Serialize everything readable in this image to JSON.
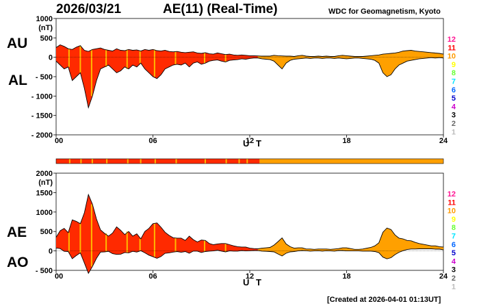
{
  "header": {
    "date": "2026/03/21",
    "title": "AE(11) (Real-Time)",
    "source": "WDC for Geomagnetism, Kyoto"
  },
  "footer": {
    "created": "[Created at 2026-04-01 01:13UT]"
  },
  "labels": {
    "au": "AU",
    "al": "AL",
    "ae": "AE",
    "ao": "AO"
  },
  "legend": {
    "stations": [
      "12",
      "11",
      "10",
      "9",
      "8",
      "7",
      "6",
      "5",
      "4",
      "3",
      "2",
      "1"
    ],
    "colors": [
      "#ff1493",
      "#ff0000",
      "#ff9900",
      "#ffff00",
      "#66ff33",
      "#00e5ff",
      "#0066ff",
      "#0000cc",
      "#cc00cc",
      "#000000",
      "#666666",
      "#bbbbbb"
    ]
  },
  "colors": {
    "orange_fill": "#ffa000",
    "red_fill": "#ff2a00",
    "yellow_stripe": "#ffbb00"
  },
  "chart_data": [
    {
      "type": "area",
      "panel": "AU/AL",
      "xlabel": "U T",
      "ylabel": "(nT)",
      "xlim": [
        0,
        24
      ],
      "ylim": [
        -2000,
        1000
      ],
      "x_ticks": [
        "00",
        "06",
        "12",
        "18",
        "24"
      ],
      "y_ticks": [
        "1000",
        "500",
        "0",
        "- 500",
        "- 1000",
        "- 1500",
        "- 2000"
      ],
      "x": [
        0,
        0.25,
        0.5,
        0.75,
        1,
        1.25,
        1.5,
        1.75,
        2,
        2.25,
        2.5,
        2.75,
        3,
        3.25,
        3.5,
        3.75,
        4,
        4.25,
        4.5,
        4.75,
        5,
        5.25,
        5.5,
        5.75,
        6,
        6.25,
        6.5,
        6.75,
        7,
        7.25,
        7.5,
        7.75,
        8,
        8.25,
        8.5,
        8.75,
        9,
        9.25,
        9.5,
        9.75,
        10,
        10.25,
        10.5,
        10.75,
        11,
        11.25,
        11.5,
        11.75,
        12,
        12.25,
        12.5,
        12.75,
        13,
        13.25,
        13.5,
        13.75,
        14,
        14.25,
        14.5,
        14.75,
        15,
        15.25,
        15.5,
        15.75,
        16,
        16.25,
        16.5,
        16.75,
        17,
        17.25,
        17.5,
        17.75,
        18,
        18.25,
        18.5,
        18.75,
        19,
        19.25,
        19.5,
        19.75,
        20,
        20.25,
        20.5,
        20.75,
        21,
        21.25,
        21.5,
        21.75,
        22,
        22.25,
        22.5,
        22.75,
        23,
        23.25,
        23.5,
        23.75,
        24
      ],
      "series": [
        {
          "name": "AU",
          "values": [
            250,
            320,
            280,
            220,
            200,
            260,
            300,
            180,
            150,
            200,
            220,
            240,
            200,
            180,
            160,
            220,
            180,
            170,
            200,
            180,
            190,
            160,
            200,
            180,
            200,
            170,
            160,
            180,
            150,
            140,
            150,
            130,
            120,
            130,
            140,
            110,
            100,
            120,
            90,
            80,
            110,
            90,
            70,
            80,
            60,
            50,
            60,
            50,
            40,
            40,
            35,
            30,
            30,
            30,
            50,
            40,
            35,
            30,
            30,
            20,
            40,
            50,
            30,
            20,
            20,
            30,
            20,
            30,
            20,
            20,
            40,
            50,
            40,
            30,
            20,
            20,
            20,
            30,
            40,
            50,
            60,
            80,
            90,
            100,
            110,
            130,
            160,
            170,
            180,
            160,
            150,
            140,
            130,
            120,
            110,
            100,
            80
          ]
        },
        {
          "name": "AL",
          "values": [
            -100,
            -200,
            -300,
            -250,
            -600,
            -500,
            -400,
            -800,
            -1300,
            -1000,
            -600,
            -300,
            -250,
            -200,
            -300,
            -400,
            -350,
            -250,
            -300,
            -200,
            -250,
            -150,
            -300,
            -400,
            -500,
            -550,
            -450,
            -300,
            -250,
            -200,
            -180,
            -200,
            -150,
            -250,
            -150,
            -120,
            -180,
            -150,
            -100,
            -80,
            -70,
            -100,
            -120,
            -80,
            -70,
            -60,
            -40,
            -50,
            -30,
            -20,
            -20,
            -40,
            -50,
            -60,
            -100,
            -200,
            -300,
            -150,
            -80,
            -50,
            -40,
            -30,
            -20,
            -30,
            -20,
            -20,
            -30,
            -20,
            -20,
            -30,
            -20,
            -30,
            -40,
            -30,
            -20,
            -20,
            -30,
            -40,
            -50,
            -80,
            -150,
            -400,
            -500,
            -450,
            -300,
            -200,
            -150,
            -100,
            -80,
            -60,
            -40,
            -30,
            -20,
            -10,
            -20,
            -10,
            -20
          ]
        }
      ]
    },
    {
      "type": "area",
      "panel": "AE/AO",
      "xlabel": "U T",
      "ylabel": "(nT)",
      "xlim": [
        0,
        24
      ],
      "ylim": [
        -500,
        2000
      ],
      "x_ticks": [
        "00",
        "06",
        "12",
        "18",
        "24"
      ],
      "y_ticks": [
        "2000",
        "1500",
        "1000",
        "500",
        "0",
        "- 500"
      ],
      "x": [
        0,
        0.25,
        0.5,
        0.75,
        1,
        1.25,
        1.5,
        1.75,
        2,
        2.25,
        2.5,
        2.75,
        3,
        3.25,
        3.5,
        3.75,
        4,
        4.25,
        4.5,
        4.75,
        5,
        5.25,
        5.5,
        5.75,
        6,
        6.25,
        6.5,
        6.75,
        7,
        7.25,
        7.5,
        7.75,
        8,
        8.25,
        8.5,
        8.75,
        9,
        9.25,
        9.5,
        9.75,
        10,
        10.25,
        10.5,
        10.75,
        11,
        11.25,
        11.5,
        11.75,
        12,
        12.25,
        12.5,
        12.75,
        13,
        13.25,
        13.5,
        13.75,
        14,
        14.25,
        14.5,
        14.75,
        15,
        15.25,
        15.5,
        15.75,
        16,
        16.25,
        16.5,
        16.75,
        17,
        17.25,
        17.5,
        17.75,
        18,
        18.25,
        18.5,
        18.75,
        19,
        19.25,
        19.5,
        19.75,
        20,
        20.25,
        20.5,
        20.75,
        21,
        21.25,
        21.5,
        21.75,
        22,
        22.25,
        22.5,
        22.75,
        23,
        23.25,
        23.5,
        23.75,
        24
      ],
      "series": [
        {
          "name": "AE",
          "values": [
            350,
            520,
            580,
            470,
            800,
            760,
            700,
            980,
            1450,
            1200,
            820,
            540,
            450,
            380,
            460,
            620,
            530,
            420,
            500,
            380,
            440,
            310,
            500,
            580,
            700,
            720,
            610,
            480,
            400,
            340,
            330,
            330,
            270,
            380,
            290,
            230,
            280,
            270,
            190,
            160,
            180,
            190,
            190,
            160,
            130,
            110,
            100,
            100,
            70,
            60,
            55,
            70,
            80,
            90,
            150,
            240,
            335,
            180,
            110,
            70,
            80,
            80,
            50,
            50,
            40,
            50,
            50,
            50,
            40,
            50,
            60,
            80,
            80,
            60,
            40,
            40,
            50,
            70,
            90,
            130,
            210,
            480,
            590,
            550,
            410,
            330,
            310,
            270,
            260,
            220,
            190,
            170,
            150,
            130,
            130,
            110,
            100
          ]
        },
        {
          "name": "AO",
          "values": [
            75,
            60,
            -10,
            -15,
            -200,
            -120,
            -50,
            -310,
            -575,
            -400,
            -190,
            -30,
            -25,
            -10,
            -70,
            -90,
            -85,
            -40,
            -50,
            -10,
            -30,
            5,
            -50,
            -110,
            -150,
            -190,
            -145,
            -60,
            -50,
            -30,
            -15,
            -35,
            -15,
            -60,
            -5,
            -5,
            -40,
            -15,
            -5,
            0,
            20,
            -5,
            -25,
            0,
            -5,
            -5,
            10,
            0,
            5,
            10,
            8,
            -5,
            -10,
            -15,
            -25,
            -80,
            -130,
            -60,
            -25,
            -15,
            0,
            10,
            5,
            -5,
            0,
            5,
            -5,
            5,
            0,
            -5,
            10,
            10,
            0,
            0,
            0,
            0,
            -5,
            -5,
            -5,
            -15,
            -45,
            -160,
            -205,
            -175,
            -95,
            -35,
            5,
            35,
            50,
            50,
            55,
            55,
            55,
            55,
            45,
            45,
            30
          ]
        }
      ]
    }
  ]
}
